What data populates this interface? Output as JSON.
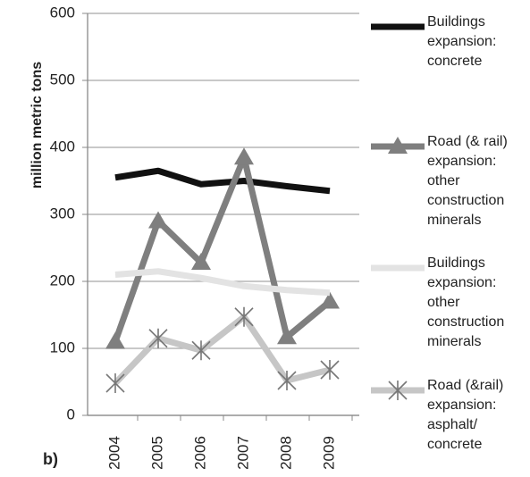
{
  "chart_data": {
    "type": "line",
    "y_label": "million metric tons",
    "annotation": "b)",
    "categories": [
      "2004",
      "2005",
      "2006",
      "2007",
      "2008",
      "2009"
    ],
    "ylim": [
      0,
      600
    ],
    "yticks": [
      0,
      100,
      200,
      300,
      400,
      500,
      600
    ],
    "grid": true,
    "series": [
      {
        "name": "Buildings expansion: concrete",
        "color": "#111111",
        "marker": "none",
        "values": [
          355,
          365,
          345,
          350,
          342,
          335
        ]
      },
      {
        "name": "Road (& rail) expansion: other construction minerals",
        "color": "#7f7f7f",
        "marker": "triangle",
        "values": [
          110,
          290,
          228,
          385,
          117,
          170
        ]
      },
      {
        "name": "Buildings expansion: other construction minerals",
        "color": "#e3e3e3",
        "marker": "none",
        "values": [
          210,
          215,
          205,
          193,
          187,
          183
        ]
      },
      {
        "name": "Road (&rail) expansion: asphalt/ concrete",
        "color": "#c6c6c6",
        "marker": "asterisk",
        "values": [
          48,
          115,
          97,
          147,
          52,
          68
        ]
      }
    ]
  }
}
